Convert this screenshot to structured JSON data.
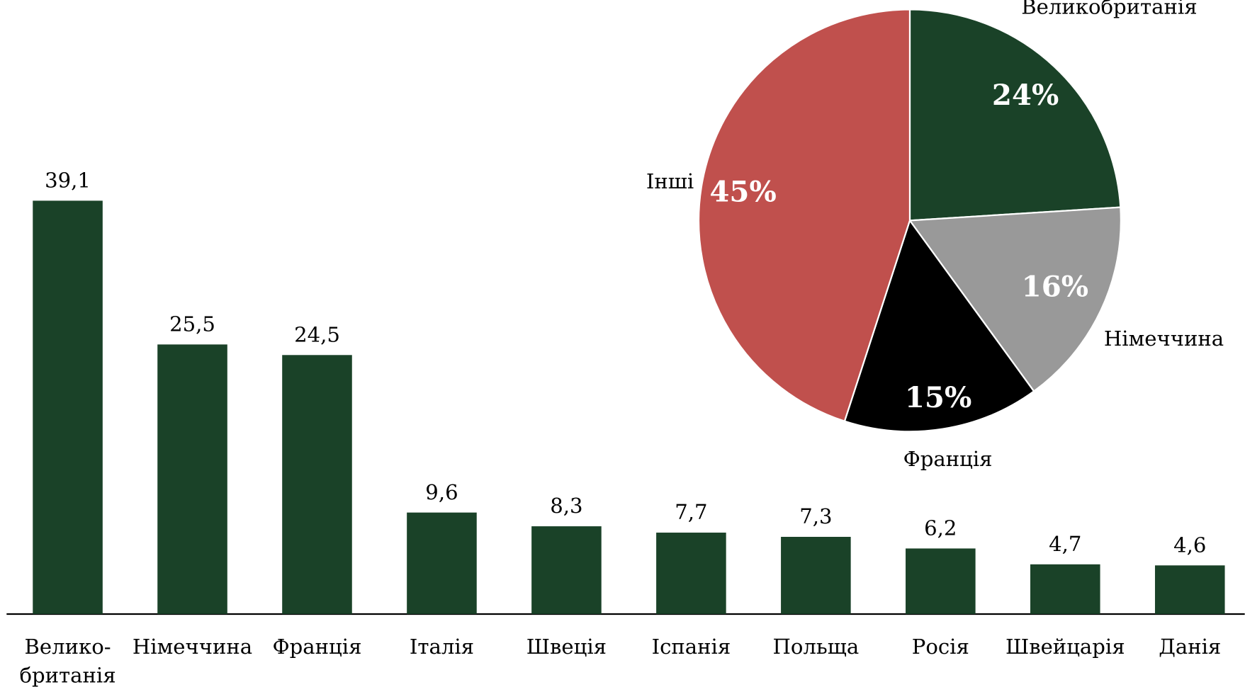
{
  "chart_data": [
    {
      "type": "bar",
      "categories": [
        "Велико-\nбританія",
        "Німеччина",
        "Франція",
        "Італія",
        "Швеція",
        "Іспанія",
        "Польща",
        "Росія",
        "Швейцарія",
        "Данія"
      ],
      "values": [
        39.1,
        25.5,
        24.5,
        9.6,
        8.3,
        7.7,
        7.3,
        6.2,
        4.7,
        4.6
      ],
      "value_labels": [
        "39,1",
        "25,5",
        "24,5",
        "9,6",
        "8,3",
        "7,7",
        "7,3",
        "6,2",
        "4,7",
        "4,6"
      ],
      "color": "#1a4228"
    },
    {
      "type": "pie",
      "categories": [
        "Великобританія",
        "Німеччина",
        "Франція",
        "Інші"
      ],
      "values": [
        24,
        16,
        15,
        45
      ],
      "value_labels": [
        "24%",
        "16%",
        "15%",
        "45%"
      ],
      "colors": [
        "#1a4228",
        "#999999",
        "#000000",
        "#c0504d"
      ]
    }
  ]
}
